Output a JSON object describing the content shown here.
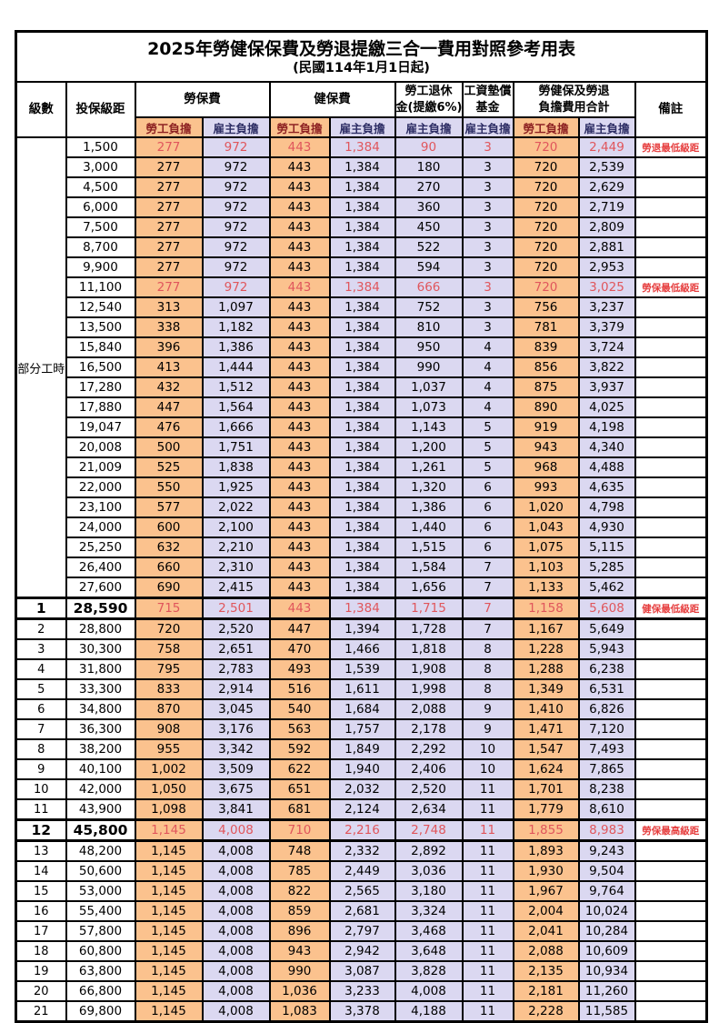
{
  "title": "2025年勞健保保費及勞退提繳三合一費用對照參考用表",
  "subtitle": "(民國114年1月1日起)",
  "header": {
    "level": "級數",
    "bracket": "投保級距",
    "labor_ins": "勞保費",
    "health_ins": "健保費",
    "pension_l1": "勞工退休",
    "pension_l2": "金(提繳6%)",
    "wage_fund_l1": "工資墊償",
    "wage_fund_l2": "基金",
    "total_l1": "勞健保及勞退",
    "total_l2": "負擔費用合計",
    "remark": "備註",
    "worker_label": "勞工負擔",
    "employer_label": "雇主負擔"
  },
  "part_time_label": "部分工時",
  "colors": {
    "worker_bg": "#FBC28E",
    "employer_bg": "#DBD8F1",
    "highlight_value_text": "#E0565C",
    "remark_text": "#E63E3E",
    "worker_header_text": "#8E2323",
    "employer_header_text": "#2F2F66",
    "border": "#000000"
  },
  "rows": [
    {
      "level": "",
      "bracket": "1,500",
      "values": [
        "277",
        "972",
        "443",
        "1,384",
        "90",
        "3",
        "720",
        "2,449"
      ],
      "remark": "勞退最低級距",
      "highlight": true,
      "bold": false
    },
    {
      "level": "",
      "bracket": "3,000",
      "values": [
        "277",
        "972",
        "443",
        "1,384",
        "180",
        "3",
        "720",
        "2,539"
      ],
      "remark": "",
      "highlight": false,
      "bold": false
    },
    {
      "level": "",
      "bracket": "4,500",
      "values": [
        "277",
        "972",
        "443",
        "1,384",
        "270",
        "3",
        "720",
        "2,629"
      ],
      "remark": "",
      "highlight": false,
      "bold": false
    },
    {
      "level": "",
      "bracket": "6,000",
      "values": [
        "277",
        "972",
        "443",
        "1,384",
        "360",
        "3",
        "720",
        "2,719"
      ],
      "remark": "",
      "highlight": false,
      "bold": false
    },
    {
      "level": "",
      "bracket": "7,500",
      "values": [
        "277",
        "972",
        "443",
        "1,384",
        "450",
        "3",
        "720",
        "2,809"
      ],
      "remark": "",
      "highlight": false,
      "bold": false
    },
    {
      "level": "",
      "bracket": "8,700",
      "values": [
        "277",
        "972",
        "443",
        "1,384",
        "522",
        "3",
        "720",
        "2,881"
      ],
      "remark": "",
      "highlight": false,
      "bold": false
    },
    {
      "level": "",
      "bracket": "9,900",
      "values": [
        "277",
        "972",
        "443",
        "1,384",
        "594",
        "3",
        "720",
        "2,953"
      ],
      "remark": "",
      "highlight": false,
      "bold": false
    },
    {
      "level": "",
      "bracket": "11,100",
      "values": [
        "277",
        "972",
        "443",
        "1,384",
        "666",
        "3",
        "720",
        "3,025"
      ],
      "remark": "勞保最低級距",
      "highlight": true,
      "bold": false
    },
    {
      "level": "",
      "bracket": "12,540",
      "values": [
        "313",
        "1,097",
        "443",
        "1,384",
        "752",
        "3",
        "756",
        "3,237"
      ],
      "remark": "",
      "highlight": false,
      "bold": false
    },
    {
      "level": "",
      "bracket": "13,500",
      "values": [
        "338",
        "1,182",
        "443",
        "1,384",
        "810",
        "3",
        "781",
        "3,379"
      ],
      "remark": "",
      "highlight": false,
      "bold": false
    },
    {
      "level": "",
      "bracket": "15,840",
      "values": [
        "396",
        "1,386",
        "443",
        "1,384",
        "950",
        "4",
        "839",
        "3,724"
      ],
      "remark": "",
      "highlight": false,
      "bold": false
    },
    {
      "level": "",
      "bracket": "16,500",
      "values": [
        "413",
        "1,444",
        "443",
        "1,384",
        "990",
        "4",
        "856",
        "3,822"
      ],
      "remark": "",
      "highlight": false,
      "bold": false
    },
    {
      "level": "",
      "bracket": "17,280",
      "values": [
        "432",
        "1,512",
        "443",
        "1,384",
        "1,037",
        "4",
        "875",
        "3,937"
      ],
      "remark": "",
      "highlight": false,
      "bold": false
    },
    {
      "level": "",
      "bracket": "17,880",
      "values": [
        "447",
        "1,564",
        "443",
        "1,384",
        "1,073",
        "4",
        "890",
        "4,025"
      ],
      "remark": "",
      "highlight": false,
      "bold": false
    },
    {
      "level": "",
      "bracket": "19,047",
      "values": [
        "476",
        "1,666",
        "443",
        "1,384",
        "1,143",
        "5",
        "919",
        "4,198"
      ],
      "remark": "",
      "highlight": false,
      "bold": false
    },
    {
      "level": "",
      "bracket": "20,008",
      "values": [
        "500",
        "1,751",
        "443",
        "1,384",
        "1,200",
        "5",
        "943",
        "4,340"
      ],
      "remark": "",
      "highlight": false,
      "bold": false
    },
    {
      "level": "",
      "bracket": "21,009",
      "values": [
        "525",
        "1,838",
        "443",
        "1,384",
        "1,261",
        "5",
        "968",
        "4,488"
      ],
      "remark": "",
      "highlight": false,
      "bold": false
    },
    {
      "level": "",
      "bracket": "22,000",
      "values": [
        "550",
        "1,925",
        "443",
        "1,384",
        "1,320",
        "6",
        "993",
        "4,635"
      ],
      "remark": "",
      "highlight": false,
      "bold": false
    },
    {
      "level": "",
      "bracket": "23,100",
      "values": [
        "577",
        "2,022",
        "443",
        "1,384",
        "1,386",
        "6",
        "1,020",
        "4,798"
      ],
      "remark": "",
      "highlight": false,
      "bold": false
    },
    {
      "level": "",
      "bracket": "24,000",
      "values": [
        "600",
        "2,100",
        "443",
        "1,384",
        "1,440",
        "6",
        "1,043",
        "4,930"
      ],
      "remark": "",
      "highlight": false,
      "bold": false
    },
    {
      "level": "",
      "bracket": "25,250",
      "values": [
        "632",
        "2,210",
        "443",
        "1,384",
        "1,515",
        "6",
        "1,075",
        "5,115"
      ],
      "remark": "",
      "highlight": false,
      "bold": false
    },
    {
      "level": "",
      "bracket": "26,400",
      "values": [
        "660",
        "2,310",
        "443",
        "1,384",
        "1,584",
        "7",
        "1,103",
        "5,285"
      ],
      "remark": "",
      "highlight": false,
      "bold": false
    },
    {
      "level": "",
      "bracket": "27,600",
      "values": [
        "690",
        "2,415",
        "443",
        "1,384",
        "1,656",
        "7",
        "1,133",
        "5,462"
      ],
      "remark": "",
      "highlight": false,
      "bold": false
    },
    {
      "level": "1",
      "bracket": "28,590",
      "values": [
        "715",
        "2,501",
        "443",
        "1,384",
        "1,715",
        "7",
        "1,158",
        "5,608"
      ],
      "remark": "健保最低級距",
      "highlight": true,
      "bold": true
    },
    {
      "level": "2",
      "bracket": "28,800",
      "values": [
        "720",
        "2,520",
        "447",
        "1,394",
        "1,728",
        "7",
        "1,167",
        "5,649"
      ],
      "remark": "",
      "highlight": false,
      "bold": false
    },
    {
      "level": "3",
      "bracket": "30,300",
      "values": [
        "758",
        "2,651",
        "470",
        "1,466",
        "1,818",
        "8",
        "1,228",
        "5,943"
      ],
      "remark": "",
      "highlight": false,
      "bold": false
    },
    {
      "level": "4",
      "bracket": "31,800",
      "values": [
        "795",
        "2,783",
        "493",
        "1,539",
        "1,908",
        "8",
        "1,288",
        "6,238"
      ],
      "remark": "",
      "highlight": false,
      "bold": false
    },
    {
      "level": "5",
      "bracket": "33,300",
      "values": [
        "833",
        "2,914",
        "516",
        "1,611",
        "1,998",
        "8",
        "1,349",
        "6,531"
      ],
      "remark": "",
      "highlight": false,
      "bold": false
    },
    {
      "level": "6",
      "bracket": "34,800",
      "values": [
        "870",
        "3,045",
        "540",
        "1,684",
        "2,088",
        "9",
        "1,410",
        "6,826"
      ],
      "remark": "",
      "highlight": false,
      "bold": false
    },
    {
      "level": "7",
      "bracket": "36,300",
      "values": [
        "908",
        "3,176",
        "563",
        "1,757",
        "2,178",
        "9",
        "1,471",
        "7,120"
      ],
      "remark": "",
      "highlight": false,
      "bold": false
    },
    {
      "level": "8",
      "bracket": "38,200",
      "values": [
        "955",
        "3,342",
        "592",
        "1,849",
        "2,292",
        "10",
        "1,547",
        "7,493"
      ],
      "remark": "",
      "highlight": false,
      "bold": false
    },
    {
      "level": "9",
      "bracket": "40,100",
      "values": [
        "1,002",
        "3,509",
        "622",
        "1,940",
        "2,406",
        "10",
        "1,624",
        "7,865"
      ],
      "remark": "",
      "highlight": false,
      "bold": false
    },
    {
      "level": "10",
      "bracket": "42,000",
      "values": [
        "1,050",
        "3,675",
        "651",
        "2,032",
        "2,520",
        "11",
        "1,701",
        "8,238"
      ],
      "remark": "",
      "highlight": false,
      "bold": false
    },
    {
      "level": "11",
      "bracket": "43,900",
      "values": [
        "1,098",
        "3,841",
        "681",
        "2,124",
        "2,634",
        "11",
        "1,779",
        "8,610"
      ],
      "remark": "",
      "highlight": false,
      "bold": false
    },
    {
      "level": "12",
      "bracket": "45,800",
      "values": [
        "1,145",
        "4,008",
        "710",
        "2,216",
        "2,748",
        "11",
        "1,855",
        "8,983"
      ],
      "remark": "勞保最高級距",
      "highlight": true,
      "bold": true
    },
    {
      "level": "13",
      "bracket": "48,200",
      "values": [
        "1,145",
        "4,008",
        "748",
        "2,332",
        "2,892",
        "11",
        "1,893",
        "9,243"
      ],
      "remark": "",
      "highlight": false,
      "bold": false
    },
    {
      "level": "14",
      "bracket": "50,600",
      "values": [
        "1,145",
        "4,008",
        "785",
        "2,449",
        "3,036",
        "11",
        "1,930",
        "9,504"
      ],
      "remark": "",
      "highlight": false,
      "bold": false
    },
    {
      "level": "15",
      "bracket": "53,000",
      "values": [
        "1,145",
        "4,008",
        "822",
        "2,565",
        "3,180",
        "11",
        "1,967",
        "9,764"
      ],
      "remark": "",
      "highlight": false,
      "bold": false
    },
    {
      "level": "16",
      "bracket": "55,400",
      "values": [
        "1,145",
        "4,008",
        "859",
        "2,681",
        "3,324",
        "11",
        "2,004",
        "10,024"
      ],
      "remark": "",
      "highlight": false,
      "bold": false
    },
    {
      "level": "17",
      "bracket": "57,800",
      "values": [
        "1,145",
        "4,008",
        "896",
        "2,797",
        "3,468",
        "11",
        "2,041",
        "10,284"
      ],
      "remark": "",
      "highlight": false,
      "bold": false
    },
    {
      "level": "18",
      "bracket": "60,800",
      "values": [
        "1,145",
        "4,008",
        "943",
        "2,942",
        "3,648",
        "11",
        "2,088",
        "10,609"
      ],
      "remark": "",
      "highlight": false,
      "bold": false
    },
    {
      "level": "19",
      "bracket": "63,800",
      "values": [
        "1,145",
        "4,008",
        "990",
        "3,087",
        "3,828",
        "11",
        "2,135",
        "10,934"
      ],
      "remark": "",
      "highlight": false,
      "bold": false
    },
    {
      "level": "20",
      "bracket": "66,800",
      "values": [
        "1,145",
        "4,008",
        "1,036",
        "3,233",
        "4,008",
        "11",
        "2,181",
        "11,260"
      ],
      "remark": "",
      "highlight": false,
      "bold": false
    },
    {
      "level": "21",
      "bracket": "69,800",
      "values": [
        "1,145",
        "4,008",
        "1,083",
        "3,378",
        "4,188",
        "11",
        "2,228",
        "11,585"
      ],
      "remark": "",
      "highlight": false,
      "bold": false
    }
  ]
}
